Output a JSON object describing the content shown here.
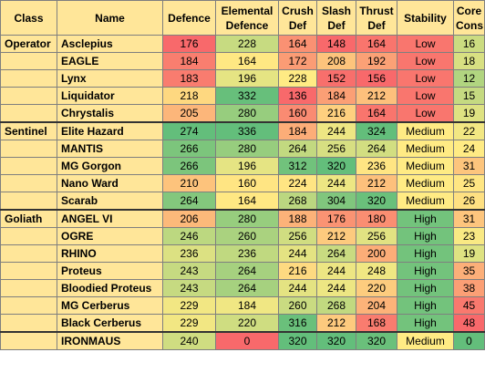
{
  "colors": {
    "header_bg": "#ffe699",
    "scale_low": "#f8696b",
    "scale_mid": "#ffeb84",
    "scale_high": "#63be7b"
  },
  "headers": [
    "Class",
    "Name",
    "Defence",
    "Elemental Defence",
    "Crush Def",
    "Slash Def",
    "Thrust Def",
    "Stability",
    "Core Cons"
  ],
  "rows": [
    {
      "class": "Operator",
      "name": "Asclepius",
      "defence": "176",
      "elemental": "228",
      "crush": "164",
      "slash": "148",
      "thrust": "164",
      "stability": "Low",
      "core": "16"
    },
    {
      "class": "",
      "name": "EAGLE",
      "defence": "184",
      "elemental": "164",
      "crush": "172",
      "slash": "208",
      "thrust": "192",
      "stability": "Low",
      "core": "18"
    },
    {
      "class": "",
      "name": "Lynx",
      "defence": "183",
      "elemental": "196",
      "crush": "228",
      "slash": "152",
      "thrust": "156",
      "stability": "Low",
      "core": "12"
    },
    {
      "class": "",
      "name": "Liquidator",
      "defence": "218",
      "elemental": "332",
      "crush": "136",
      "slash": "184",
      "thrust": "212",
      "stability": "Low",
      "core": "15"
    },
    {
      "class": "",
      "name": "Chrystalis",
      "defence": "205",
      "elemental": "280",
      "crush": "160",
      "slash": "216",
      "thrust": "164",
      "stability": "Low",
      "core": "19"
    },
    {
      "class": "Sentinel",
      "name": "Elite Hazard",
      "defence": "274",
      "elemental": "336",
      "crush": "184",
      "slash": "244",
      "thrust": "324",
      "stability": "Medium",
      "core": "22"
    },
    {
      "class": "",
      "name": "MANTIS",
      "defence": "266",
      "elemental": "280",
      "crush": "264",
      "slash": "256",
      "thrust": "264",
      "stability": "Medium",
      "core": "24"
    },
    {
      "class": "",
      "name": "MG Gorgon",
      "defence": "266",
      "elemental": "196",
      "crush": "312",
      "slash": "320",
      "thrust": "236",
      "stability": "Medium",
      "core": "31"
    },
    {
      "class": "",
      "name": "Nano Ward",
      "defence": "210",
      "elemental": "160",
      "crush": "224",
      "slash": "244",
      "thrust": "212",
      "stability": "Medium",
      "core": "25"
    },
    {
      "class": "",
      "name": "Scarab",
      "defence": "264",
      "elemental": "164",
      "crush": "268",
      "slash": "304",
      "thrust": "320",
      "stability": "Medium",
      "core": "26"
    },
    {
      "class": "Goliath",
      "name": "ANGEL VI",
      "defence": "206",
      "elemental": "280",
      "crush": "188",
      "slash": "176",
      "thrust": "180",
      "stability": "High",
      "core": "31"
    },
    {
      "class": "",
      "name": "OGRE",
      "defence": "246",
      "elemental": "260",
      "crush": "256",
      "slash": "212",
      "thrust": "256",
      "stability": "High",
      "core": "23"
    },
    {
      "class": "",
      "name": "RHINO",
      "defence": "236",
      "elemental": "236",
      "crush": "244",
      "slash": "264",
      "thrust": "200",
      "stability": "High",
      "core": "19"
    },
    {
      "class": "",
      "name": "Proteus",
      "defence": "243",
      "elemental": "264",
      "crush": "216",
      "slash": "244",
      "thrust": "248",
      "stability": "High",
      "core": "35"
    },
    {
      "class": "",
      "name": "Bloodied Proteus",
      "defence": "243",
      "elemental": "264",
      "crush": "244",
      "slash": "244",
      "thrust": "220",
      "stability": "High",
      "core": "38"
    },
    {
      "class": "",
      "name": "MG Cerberus",
      "defence": "229",
      "elemental": "184",
      "crush": "260",
      "slash": "268",
      "thrust": "204",
      "stability": "High",
      "core": "45"
    },
    {
      "class": "",
      "name": "Black Cerberus",
      "defence": "229",
      "elemental": "220",
      "crush": "316",
      "slash": "212",
      "thrust": "168",
      "stability": "High",
      "core": "48"
    },
    {
      "class": "",
      "name": "IRONMAUS",
      "defence": "240",
      "elemental": "0",
      "crush": "320",
      "slash": "320",
      "thrust": "320",
      "stability": "Medium",
      "core": "0"
    }
  ]
}
